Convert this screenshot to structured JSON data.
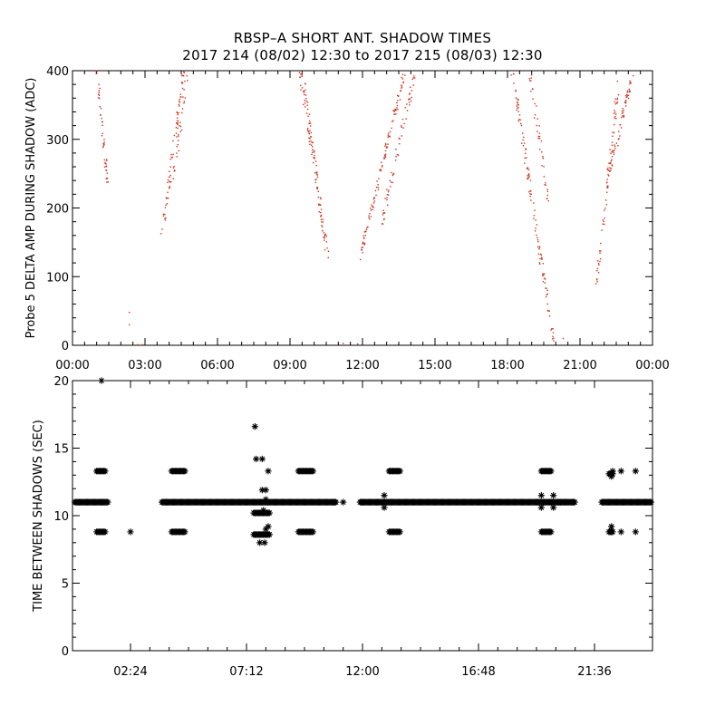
{
  "title_line1": "RBSP–A SHORT ANT. SHADOW TIMES",
  "title_line2": "2017 214 (08/02) 12:30 to 2017 215 (08/03) 12:30",
  "chart_data": [
    {
      "type": "scatter",
      "ylabel": "Probe 5 DELTA AMP DURING SHADOW (ADC)",
      "xlabel": "",
      "x_unit": "hours of day",
      "xlim": [
        0,
        24
      ],
      "ylim": [
        0,
        400
      ],
      "x_ticks": [
        0,
        3,
        6,
        9,
        12,
        15,
        18,
        21,
        24
      ],
      "x_tick_labels": [
        "00:00",
        "03:00",
        "06:00",
        "09:00",
        "12:00",
        "15:00",
        "18:00",
        "21:00",
        "00:00"
      ],
      "y_ticks": [
        0,
        100,
        200,
        300,
        400
      ],
      "y_tick_labels": [
        "0",
        "100",
        "200",
        "300",
        "400"
      ],
      "marker": "dot",
      "color": "#d2321e",
      "grid": false,
      "tracks": [
        {
          "x": [
            1.0,
            1.45
          ],
          "y": [
            400,
            235
          ],
          "n": 45
        },
        {
          "x": [
            3.7,
            4.6
          ],
          "y": [
            155,
            400
          ],
          "n": 70
        },
        {
          "x": [
            4.2,
            4.75
          ],
          "y": [
            245,
            400
          ],
          "n": 30
        },
        {
          "x": [
            9.4,
            10.55
          ],
          "y": [
            400,
            130
          ],
          "n": 80
        },
        {
          "x": [
            9.55,
            10.3
          ],
          "y": [
            400,
            190
          ],
          "n": 40
        },
        {
          "x": [
            11.9,
            13.75
          ],
          "y": [
            130,
            400
          ],
          "n": 110
        },
        {
          "x": [
            12.8,
            14.2
          ],
          "y": [
            180,
            400
          ],
          "n": 60
        },
        {
          "x": [
            18.2,
            19.9
          ],
          "y": [
            400,
            5
          ],
          "n": 110
        },
        {
          "x": [
            18.9,
            19.7
          ],
          "y": [
            400,
            210
          ],
          "n": 40
        },
        {
          "x": [
            21.7,
            22.6
          ],
          "y": [
            90,
            390
          ],
          "n": 70
        },
        {
          "x": [
            22.2,
            23.2
          ],
          "y": [
            250,
            400
          ],
          "n": 60
        }
      ],
      "points": [
        {
          "x": 2.35,
          "y": 48
        },
        {
          "x": 2.35,
          "y": 30
        },
        {
          "x": 2.7,
          "y": 1
        },
        {
          "x": 2.9,
          "y": 1
        },
        {
          "x": 11.2,
          "y": 3
        },
        {
          "x": 11.8,
          "y": 2
        },
        {
          "x": 20.3,
          "y": 10
        }
      ]
    },
    {
      "type": "scatter",
      "ylabel": "TIME BETWEEN SHADOWS (SEC)",
      "xlabel": "",
      "x_unit": "hours of day",
      "xlim": [
        0,
        24
      ],
      "ylim": [
        0,
        20
      ],
      "x_ticks": [
        2.4,
        7.2,
        12.0,
        16.8,
        21.6
      ],
      "x_tick_labels": [
        "02:24",
        "07:12",
        "12:00",
        "16:48",
        "21:36"
      ],
      "y_ticks": [
        0,
        5,
        10,
        15,
        20
      ],
      "y_tick_labels": [
        "0",
        "5",
        "10",
        "15",
        "20"
      ],
      "marker": "asterisk",
      "color": "#000000",
      "grid": false,
      "bands": [
        {
          "x": [
            0.1,
            1.5
          ],
          "y": 11.0
        },
        {
          "x": [
            3.7,
            10.9
          ],
          "y": 11.0
        },
        {
          "x": [
            11.9,
            20.8
          ],
          "y": 11.0
        },
        {
          "x": [
            21.9,
            23.95
          ],
          "y": 11.0
        }
      ],
      "clusters": [
        {
          "x": [
            1.0,
            1.4
          ],
          "y": 13.3
        },
        {
          "x": [
            1.0,
            1.4
          ],
          "y": 8.8
        },
        {
          "x": [
            4.1,
            4.65
          ],
          "y": 13.3
        },
        {
          "x": [
            4.1,
            4.65
          ],
          "y": 8.8
        },
        {
          "x": [
            9.35,
            10.0
          ],
          "y": 13.3
        },
        {
          "x": [
            9.35,
            10.0
          ],
          "y": 8.8
        },
        {
          "x": [
            7.5,
            8.2
          ],
          "y": 10.2
        },
        {
          "x": [
            7.5,
            8.2
          ],
          "y": 8.6
        },
        {
          "x": [
            13.1,
            13.6
          ],
          "y": 13.3
        },
        {
          "x": [
            13.1,
            13.6
          ],
          "y": 8.8
        },
        {
          "x": [
            19.4,
            19.85
          ],
          "y": 13.3
        },
        {
          "x": [
            19.4,
            19.85
          ],
          "y": 8.8
        },
        {
          "x": [
            22.2,
            22.4
          ],
          "y": 13.1
        },
        {
          "x": [
            22.2,
            22.4
          ],
          "y": 8.8
        }
      ],
      "points": [
        {
          "x": 1.2,
          "y": 20.0
        },
        {
          "x": 2.4,
          "y": 8.8
        },
        {
          "x": 7.55,
          "y": 16.6
        },
        {
          "x": 7.6,
          "y": 14.2
        },
        {
          "x": 7.85,
          "y": 14.2
        },
        {
          "x": 8.1,
          "y": 13.3
        },
        {
          "x": 7.85,
          "y": 11.9
        },
        {
          "x": 8.0,
          "y": 11.9
        },
        {
          "x": 8.0,
          "y": 11.2
        },
        {
          "x": 7.9,
          "y": 10.4
        },
        {
          "x": 8.1,
          "y": 9.2
        },
        {
          "x": 8.0,
          "y": 9.0
        },
        {
          "x": 7.75,
          "y": 8.0
        },
        {
          "x": 7.95,
          "y": 8.0
        },
        {
          "x": 11.2,
          "y": 11.0
        },
        {
          "x": 12.9,
          "y": 11.5
        },
        {
          "x": 12.9,
          "y": 10.6
        },
        {
          "x": 19.4,
          "y": 11.5
        },
        {
          "x": 19.4,
          "y": 10.6
        },
        {
          "x": 19.9,
          "y": 11.5
        },
        {
          "x": 19.9,
          "y": 10.6
        },
        {
          "x": 20.2,
          "y": 11.0
        },
        {
          "x": 22.35,
          "y": 13.3
        },
        {
          "x": 22.3,
          "y": 12.9
        },
        {
          "x": 22.3,
          "y": 9.2
        },
        {
          "x": 22.3,
          "y": 8.9
        },
        {
          "x": 22.7,
          "y": 13.3
        },
        {
          "x": 22.7,
          "y": 8.8
        },
        {
          "x": 23.3,
          "y": 13.3
        },
        {
          "x": 23.3,
          "y": 8.8
        }
      ]
    }
  ]
}
